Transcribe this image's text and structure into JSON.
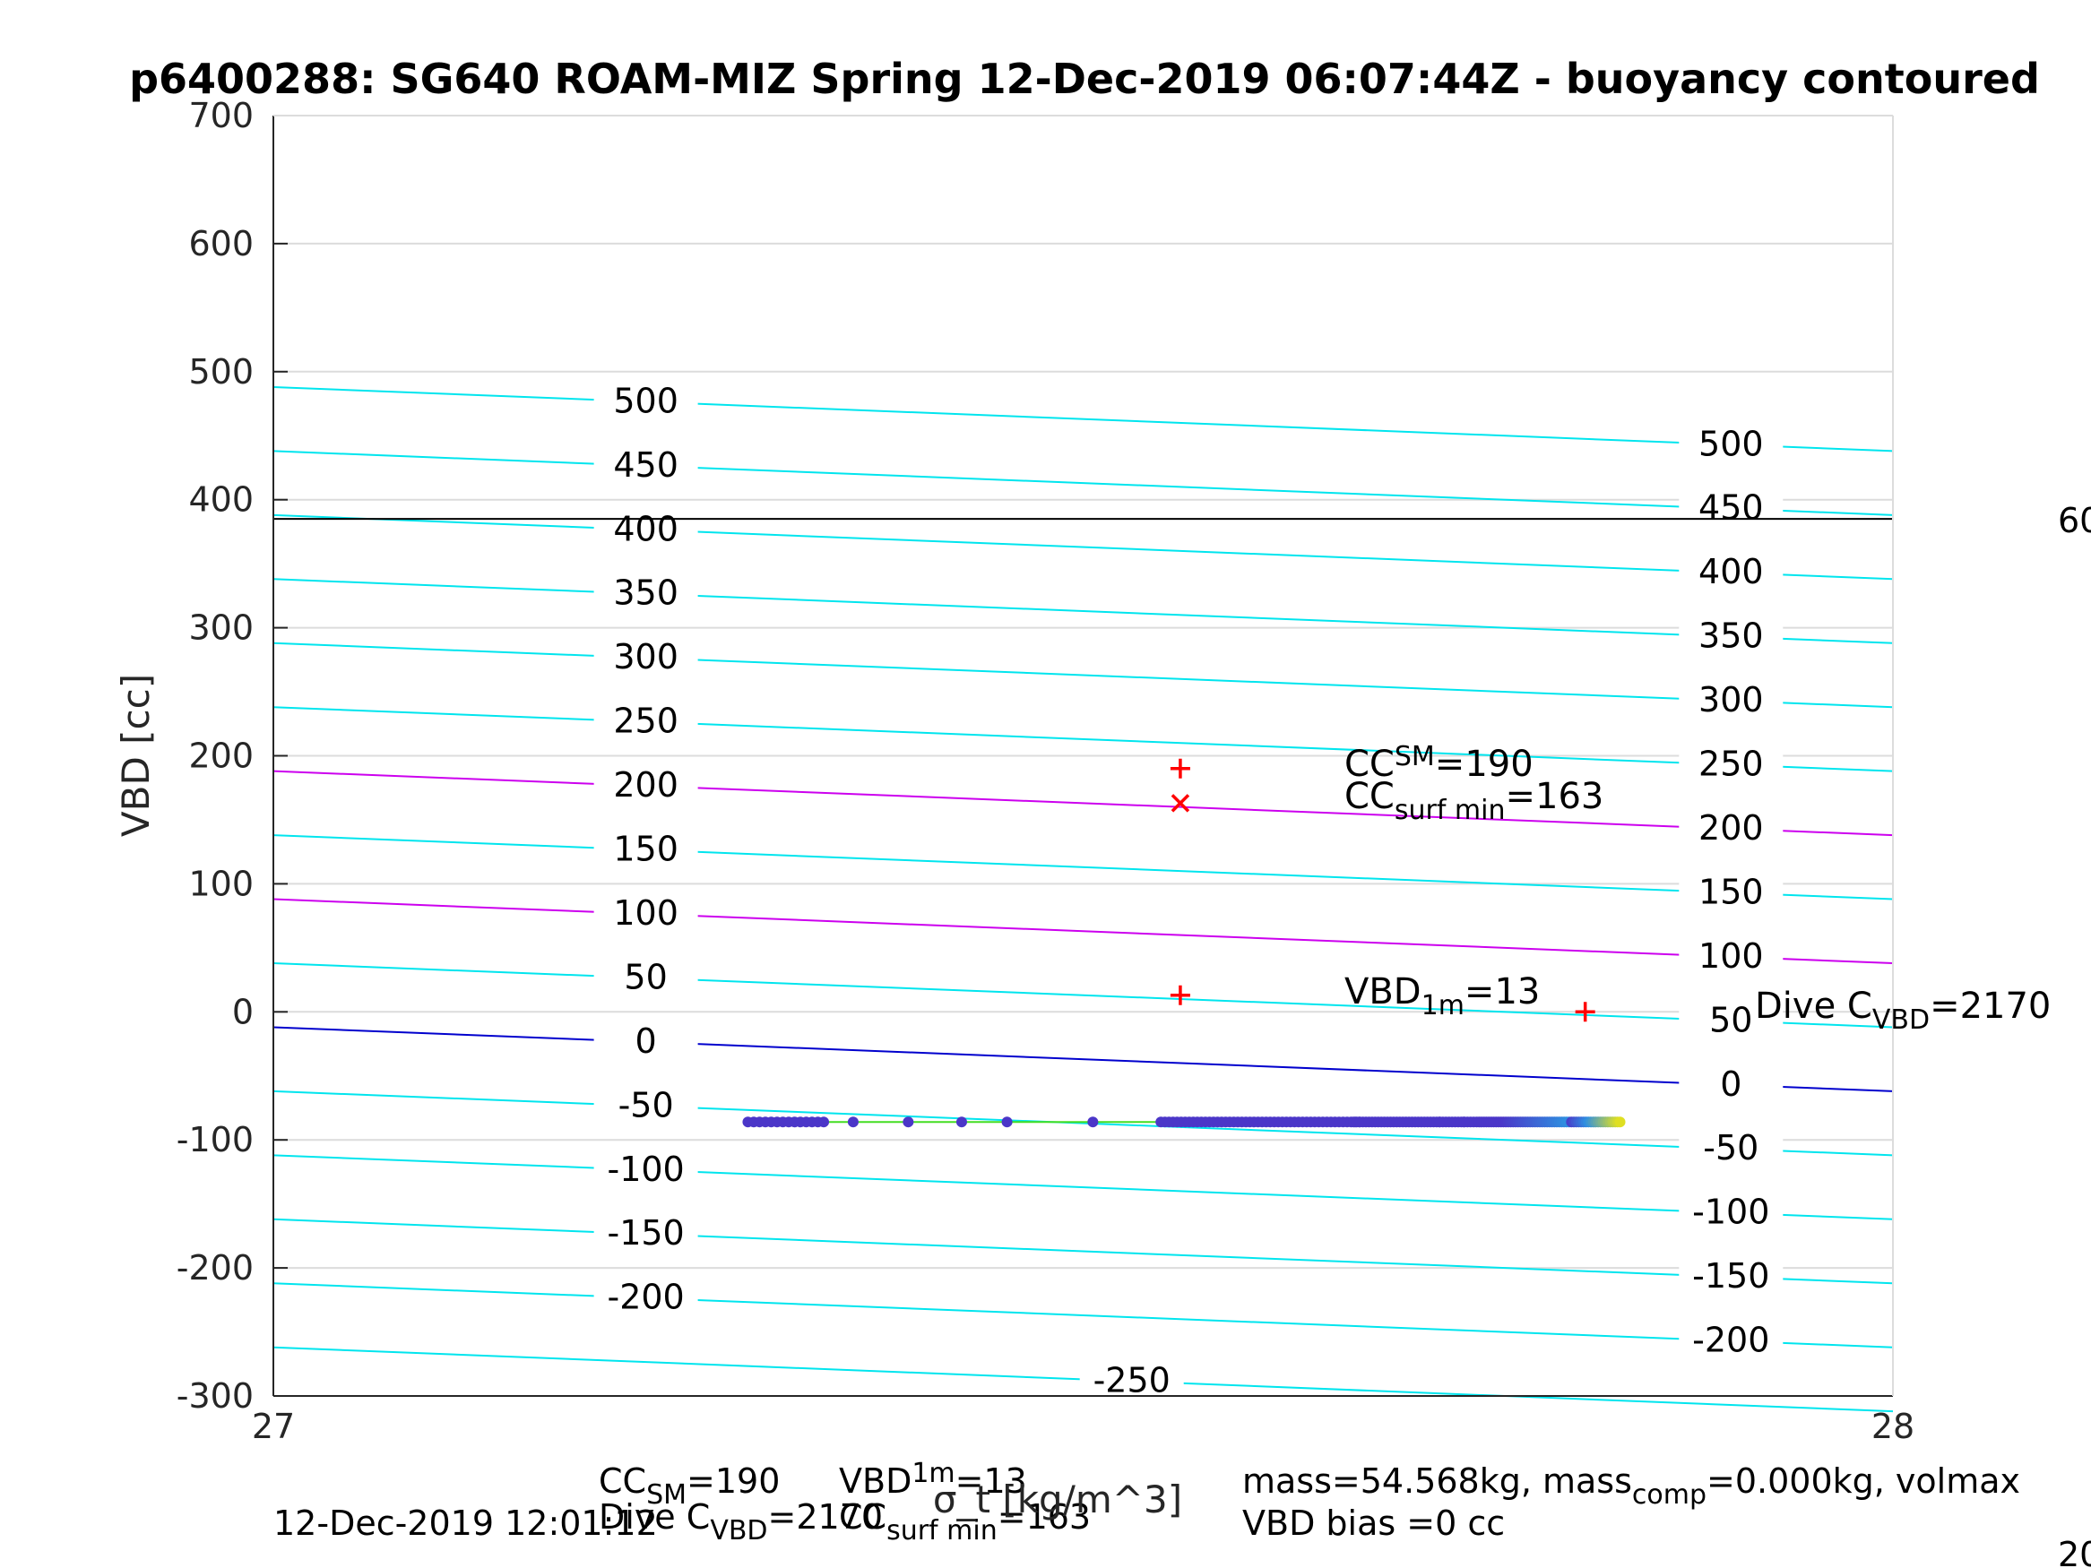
{
  "chart_data": {
    "type": "scatter",
    "title": "p6400288: SG640 ROAM-MIZ Spring 12-Dec-2019 06:07:44Z - buoyancy contoured",
    "xlabel": "σ_t [kg/m^3]",
    "ylabel": "VBD [cc]",
    "xlim": [
      27,
      28
    ],
    "ylim": [
      -300,
      700
    ],
    "grid": true,
    "x_ticks": [
      "27",
      "28"
    ],
    "y_ticks": [
      "-300",
      "-200",
      "-100",
      "0",
      "100",
      "200",
      "300",
      "400",
      "500",
      "600",
      "700"
    ],
    "reference_line": {
      "y": 385,
      "color": "#000000",
      "right_label": "60"
    },
    "contours": {
      "left_x": 27.0,
      "right_x": 28.0,
      "levels": [
        {
          "value": -250,
          "left_y": -262,
          "right_y": -312,
          "color": "#00e5ee"
        },
        {
          "value": -200,
          "left_y": -212,
          "right_y": -262,
          "color": "#00e5ee"
        },
        {
          "value": -150,
          "left_y": -162,
          "right_y": -212,
          "color": "#00e5ee"
        },
        {
          "value": -100,
          "left_y": -112,
          "right_y": -162,
          "color": "#00e5ee"
        },
        {
          "value": -50,
          "left_y": -62,
          "right_y": -112,
          "color": "#00e5ee"
        },
        {
          "value": 0,
          "left_y": -12,
          "right_y": -62,
          "color": "#0000cd"
        },
        {
          "value": 50,
          "left_y": 38,
          "right_y": -12,
          "color": "#00e5ee"
        },
        {
          "value": 100,
          "left_y": 88,
          "right_y": 38,
          "color": "#cc00ee"
        },
        {
          "value": 150,
          "left_y": 138,
          "right_y": 88,
          "color": "#00e5ee"
        },
        {
          "value": 200,
          "left_y": 188,
          "right_y": 138,
          "color": "#cc00ee"
        },
        {
          "value": 250,
          "left_y": 238,
          "right_y": 188,
          "color": "#00e5ee"
        },
        {
          "value": 300,
          "left_y": 288,
          "right_y": 238,
          "color": "#00e5ee"
        },
        {
          "value": 350,
          "left_y": 338,
          "right_y": 288,
          "color": "#00e5ee"
        },
        {
          "value": 400,
          "left_y": 388,
          "right_y": 338,
          "color": "#00e5ee"
        },
        {
          "value": 450,
          "left_y": 438,
          "right_y": 388,
          "color": "#00e5ee"
        },
        {
          "value": 500,
          "left_y": 488,
          "right_y": 438,
          "color": "#00e5ee"
        }
      ],
      "left_labels": [
        "500",
        "450",
        "400",
        "350",
        "300",
        "250",
        "200",
        "150",
        "100",
        "50",
        "0",
        "-50",
        "-100",
        "-150",
        "-200"
      ],
      "right_labels": [
        "500",
        "450",
        "400",
        "350",
        "300",
        "250",
        "200",
        "150",
        "100",
        "50",
        "0",
        "-50",
        "-100",
        "-150",
        "-200"
      ],
      "bottom_label": "-250"
    },
    "data_line": {
      "x": [
        27.29,
        27.83
      ],
      "y": -86,
      "color": "#44dd22"
    },
    "series": [
      {
        "marker": "dot",
        "x": [
          27.293,
          27.298,
          27.302,
          27.306,
          27.31,
          27.314,
          27.318,
          27.322,
          27.326,
          27.33,
          27.336,
          27.342,
          27.349,
          27.357,
          27.359,
          27.36,
          27.36,
          27.36,
          27.36,
          27.36,
          27.361,
          27.361,
          27.361,
          27.361,
          27.361,
          27.361,
          27.362,
          27.362,
          27.362,
          27.362,
          27.362,
          27.362,
          27.362,
          27.362,
          27.362,
          27.362,
          27.362,
          27.362,
          27.362,
          27.362,
          27.362,
          27.362,
          27.362,
          27.362,
          27.362,
          27.362,
          27.362,
          27.362,
          27.362,
          27.362,
          27.362,
          27.362,
          27.362,
          27.362,
          27.362,
          27.362,
          27.362,
          27.362,
          27.362,
          27.362,
          27.362,
          27.362,
          27.362,
          27.362,
          27.362,
          27.362,
          27.362,
          27.362,
          27.362,
          27.362,
          27.362,
          27.362,
          27.362,
          27.362,
          27.362,
          27.362,
          27.362,
          27.362,
          27.362,
          27.362,
          27.362,
          27.362,
          27.362,
          27.362,
          27.362,
          27.362,
          27.362,
          27.362,
          27.362,
          27.362,
          27.362,
          27.362,
          27.362,
          27.362,
          27.362,
          27.362,
          27.362,
          27.362,
          27.362,
          27.362,
          27.362,
          27.362,
          27.362,
          27.362,
          27.362,
          27.362,
          27.362,
          27.362,
          27.362,
          27.362,
          27.362,
          27.362,
          27.362,
          27.362,
          27.362,
          27.362,
          27.362,
          27.362,
          27.362,
          27.362,
          27.362,
          27.362,
          27.362,
          27.362,
          27.362,
          27.362,
          27.362,
          27.362,
          27.362,
          27.362,
          27.362,
          27.362,
          27.362,
          27.362,
          27.362,
          27.362,
          27.362,
          27.362,
          27.362,
          27.362,
          27.362,
          27.362,
          27.362,
          27.362,
          27.362,
          27.362,
          27.362,
          27.362,
          27.362,
          27.362,
          27.362,
          27.362,
          27.362,
          27.362,
          27.362,
          27.362,
          27.362,
          27.362,
          27.362,
          27.362,
          27.362,
          27.362,
          27.362,
          27.362,
          27.362,
          27.362,
          27.362,
          27.362,
          27.362,
          27.362,
          27.362,
          27.362,
          27.362,
          27.362,
          27.362,
          27.362,
          27.362,
          27.362,
          27.362,
          27.362,
          27.362,
          27.362,
          27.362,
          27.362,
          27.362,
          27.362,
          27.362,
          27.362,
          27.362,
          27.362,
          27.362,
          27.362,
          27.362,
          27.362,
          27.362,
          27.362,
          27.362,
          27.362,
          27.362,
          27.362,
          27.362,
          27.362,
          27.362,
          27.362,
          27.362,
          27.362,
          27.362,
          27.362,
          27.362,
          27.362,
          27.362,
          27.362,
          27.362,
          27.362,
          27.362,
          27.362,
          27.362,
          27.362,
          27.362,
          27.362,
          27.362,
          27.362,
          27.362,
          27.362,
          27.362,
          27.362,
          27.362,
          27.362,
          27.362
        ],
        "y": -86,
        "color_range": [
          "#4b36c8",
          "#ffee00"
        ]
      }
    ],
    "markers": [
      {
        "symbol": "+",
        "x": 27.56,
        "y": 190,
        "color": "#ff0000"
      },
      {
        "symbol": "x",
        "x": 27.56,
        "y": 163,
        "color": "#ff0000"
      },
      {
        "symbol": "+",
        "x": 27.56,
        "y": 13,
        "color": "#ff0000"
      },
      {
        "symbol": "+",
        "x": 27.81,
        "y": 0,
        "color": "#ff0000"
      }
    ],
    "annotations": {
      "cc_sm": {
        "main": "CC",
        "sup": "SM",
        "tail": "=190"
      },
      "cc_surf": {
        "main": "CC",
        "sub": "surf min",
        "tail": "=163"
      },
      "vbd_1m": {
        "main": "VBD",
        "sub": "1m",
        "tail": "=13"
      },
      "dive_c": {
        "main": "Dive C",
        "sub": "VBD",
        "tail": "=2170"
      }
    }
  },
  "footer": {
    "timestamp": "12-Dec-2019 12:01:12",
    "line1_left": {
      "cc": "CC",
      "cc_sub": "SM",
      "cc_val": "=190",
      "vbd": "VBD",
      "vbd_sub": "1m",
      "vbd_val": "=13"
    },
    "line2_left": {
      "dive": "Dive C",
      "dive_sub": "VBD",
      "dive_val": "=2170",
      "cc": "CC",
      "cc_sub": "surf min",
      "cc_val": "=163"
    },
    "mass_line": {
      "a": "mass=54.568kg, mass",
      "sub": "comp",
      "b": "=0.000kg, volmax"
    },
    "bias_line": "VBD bias =0 cc",
    "right_edge_fragment": "20"
  }
}
